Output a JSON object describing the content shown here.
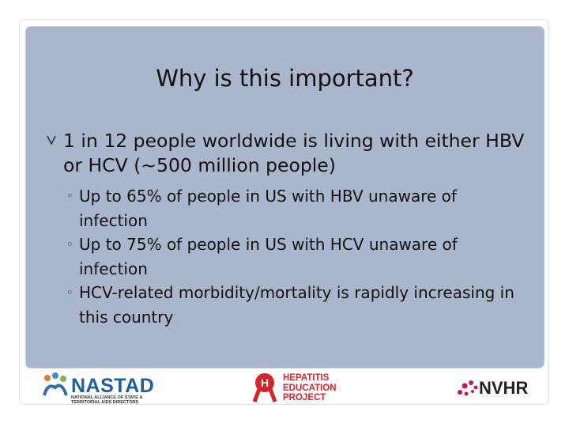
{
  "slide": {
    "title": "Why is this important?",
    "bullet": "1 in 12 people worldwide is living with either HBV or HCV (~500 million people)",
    "sub_bullets": [
      "Up to 65% of people in US with HBV unaware of infection",
      "Up to 75% of people in US with HCV unaware of infection",
      "HCV-related morbidity/mortality is rapidly increasing in this country"
    ]
  },
  "logos": {
    "nastad": {
      "name": "NASTAD",
      "tagline": "NATIONAL ALLIANCE OF STATE & TERRITORIAL AIDS DIRECTORS"
    },
    "hep": {
      "lines": [
        "HEPATITIS",
        "EDUCATION",
        "PROJECT"
      ]
    },
    "nvhr": {
      "name": "NVHR"
    }
  }
}
